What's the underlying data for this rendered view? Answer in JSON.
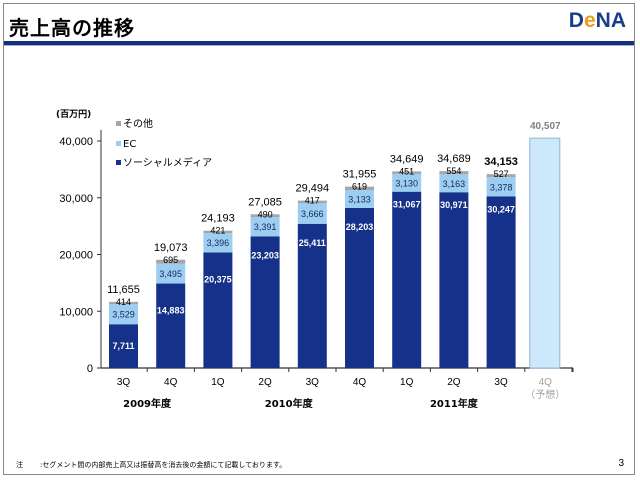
{
  "header": {
    "title": "売上高の推移",
    "logo_parts": [
      "D",
      "e",
      "NA"
    ]
  },
  "footer": {
    "note_label": "注",
    "note_text": ":セグメント間の内部売上高又は振替高を消去後の金額にて記載しております。",
    "page_number": "3"
  },
  "colors": {
    "social_media": "#16318a",
    "ec": "#9ccdf2",
    "other": "#a6a6a6",
    "forecast": "#cde8fb",
    "forecast_border": "#8fb7d8",
    "brand_blue": "#1a3c8f",
    "brand_orange": "#f39a1e"
  },
  "chart_data": {
    "type": "bar",
    "stacked": true,
    "title": "売上高の推移",
    "unit_label": "(百万円)",
    "ylabel": "(百万円)",
    "xlabel": "",
    "ylim": [
      0,
      40000
    ],
    "yticks": [
      0,
      10000,
      20000,
      30000,
      40000
    ],
    "ytick_labels": [
      "0",
      "10,000",
      "20,000",
      "30,000",
      "40,000"
    ],
    "grid": false,
    "legend_position": "top-left",
    "categories": [
      "3Q",
      "4Q",
      "1Q",
      "2Q",
      "3Q",
      "4Q",
      "1Q",
      "2Q",
      "3Q",
      "4Q"
    ],
    "category_sublabels": [
      "",
      "",
      "",
      "",
      "",
      "",
      "",
      "",
      "",
      "（予想）"
    ],
    "fiscal_year_groups": [
      {
        "label": "2009年度",
        "span": [
          0,
          1
        ]
      },
      {
        "label": "2010年度",
        "span": [
          2,
          5
        ]
      },
      {
        "label": "2011年度",
        "span": [
          6,
          8
        ]
      }
    ],
    "series": [
      {
        "name": "ソーシャルメディア",
        "key": "social_media",
        "values": [
          7711,
          14883,
          20375,
          23203,
          25411,
          28203,
          31067,
          30971,
          30247,
          null
        ]
      },
      {
        "name": "EC",
        "key": "ec",
        "values": [
          3529,
          3495,
          3396,
          3391,
          3666,
          3133,
          3130,
          3163,
          3378,
          null
        ]
      },
      {
        "name": "その他",
        "key": "other",
        "values": [
          414,
          695,
          421,
          490,
          417,
          619,
          451,
          554,
          527,
          null
        ]
      }
    ],
    "legend_order": [
      "その他",
      "EC",
      "ソーシャルメディア"
    ],
    "totals": [
      11655,
      19073,
      24193,
      27085,
      29494,
      31955,
      34649,
      34689,
      34153,
      40507
    ],
    "total_labels": [
      "11,655",
      "19,073",
      "24,193",
      "27,085",
      "29,494",
      "31,955",
      "34,649",
      "34,689",
      "34,153",
      "40,507"
    ],
    "segment_labels": {
      "social_media": [
        "7,711",
        "14,883",
        "20,375",
        "23,203",
        "25,411",
        "28,203",
        "31,067",
        "30,971",
        "30,247",
        ""
      ],
      "ec": [
        "3,529",
        "3,495",
        "3,396",
        "3,391",
        "3,666",
        "3,133",
        "3,130",
        "3,163",
        "3,378",
        ""
      ],
      "other": [
        "414",
        "695",
        "421",
        "490",
        "417",
        "619",
        "451",
        "554",
        "527",
        ""
      ]
    },
    "forecast": {
      "index": 9,
      "value": 40507,
      "label": "4Q（予想）"
    },
    "highlighted_total_index": 8
  }
}
